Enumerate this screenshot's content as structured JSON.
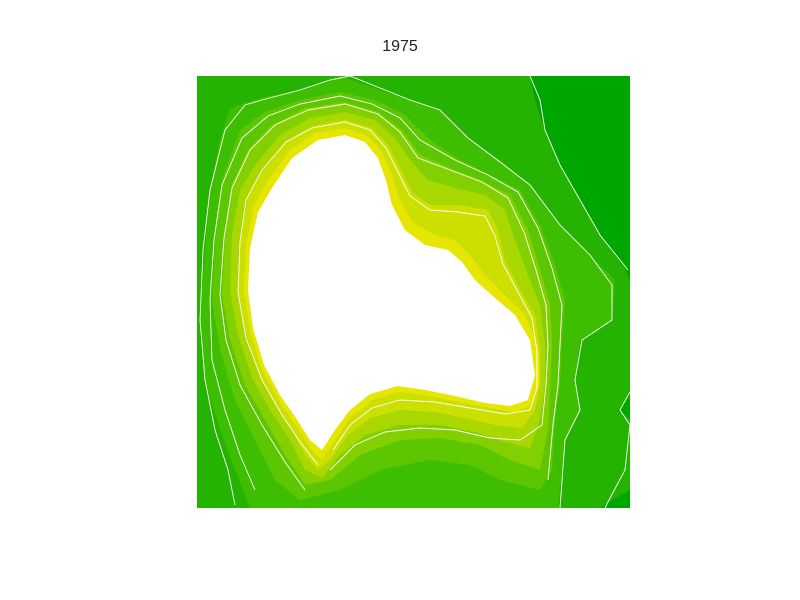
{
  "title": "1975",
  "legend": [],
  "colors": {
    "c1": "#00a600",
    "c2": "#24b300",
    "c3": "#3dbe00",
    "c4": "#5cc700",
    "c5": "#82d000",
    "c6": "#a8d800",
    "c7": "#cce000",
    "c8": "#e6e600",
    "background": "#ffffff",
    "contour": "#ffffff"
  }
}
